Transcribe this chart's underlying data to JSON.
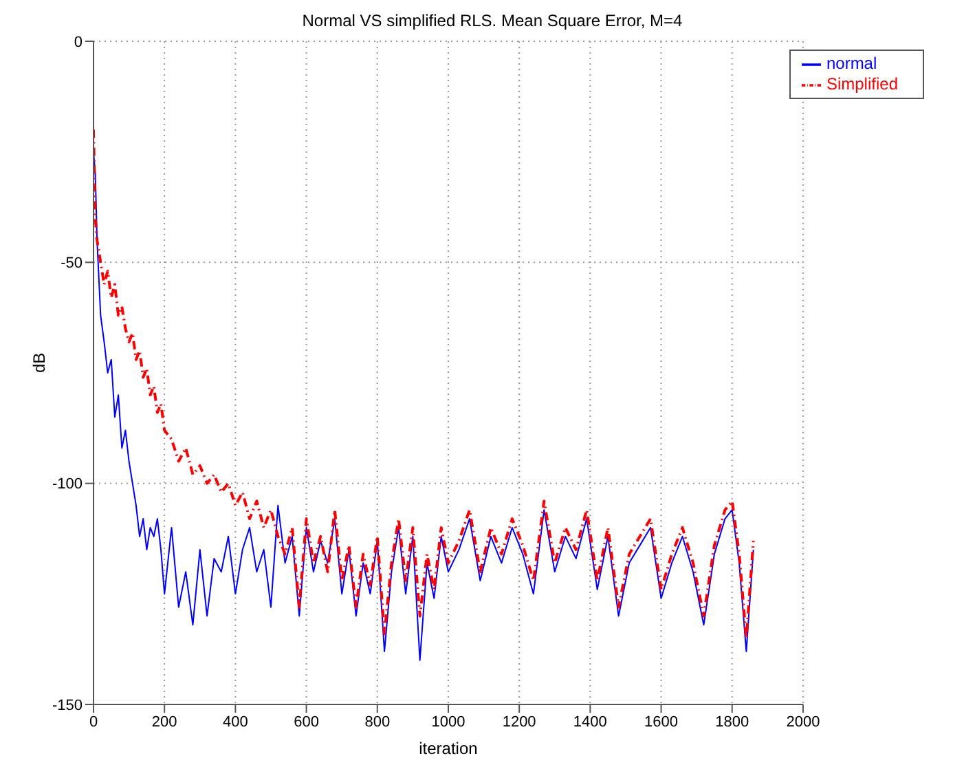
{
  "chart_data": {
    "type": "line",
    "title": "Normal VS simplified RLS. Mean Square Error, M=4",
    "xlabel": "iteration",
    "ylabel": "dB",
    "x": [
      0,
      5,
      10,
      20,
      30,
      40,
      50,
      60,
      70,
      80,
      90,
      100,
      110,
      120,
      130,
      140,
      150,
      160,
      170,
      180,
      190,
      200,
      220,
      240,
      260,
      280,
      300,
      320,
      340,
      360,
      380,
      400,
      420,
      440,
      460,
      480,
      500,
      520,
      540,
      560,
      580,
      600,
      620,
      640,
      660,
      680,
      700,
      720,
      740,
      760,
      780,
      800,
      820,
      840,
      860,
      880,
      900,
      920,
      940,
      960,
      980,
      1000,
      1030,
      1060,
      1090,
      1120,
      1150,
      1180,
      1210,
      1240,
      1270,
      1300,
      1330,
      1360,
      1390,
      1420,
      1450,
      1480,
      1510,
      1540,
      1570,
      1600,
      1630,
      1660,
      1690,
      1720,
      1750,
      1780,
      1800,
      1820,
      1840,
      1860
    ],
    "series": [
      {
        "name": "normal",
        "color": "#0000ff",
        "line_style": "solid",
        "values": [
          -25,
          -30,
          -45,
          -62,
          -68,
          -75,
          -72,
          -85,
          -80,
          -92,
          -88,
          -95,
          -100,
          -105,
          -112,
          -108,
          -115,
          -110,
          -112,
          -108,
          -115,
          -125,
          -110,
          -128,
          -120,
          -132,
          -115,
          -130,
          -117,
          -120,
          -112,
          -125,
          -115,
          -110,
          -120,
          -115,
          -128,
          -105,
          -118,
          -112,
          -130,
          -110,
          -120,
          -113,
          -118,
          -108,
          -125,
          -115,
          -130,
          -118,
          -125,
          -113,
          -138,
          -120,
          -110,
          -125,
          -112,
          -140,
          -118,
          -126,
          -112,
          -120,
          -115,
          -108,
          -122,
          -112,
          -118,
          -110,
          -116,
          -125,
          -106,
          -120,
          -112,
          -117,
          -108,
          -124,
          -112,
          -130,
          -118,
          -114,
          -110,
          -126,
          -118,
          -112,
          -120,
          -132,
          -116,
          -108,
          -106,
          -118,
          -138,
          -115
        ]
      },
      {
        "name": "Simplified",
        "color": "#ff0000",
        "line_style": "dashed",
        "values": [
          -20,
          -40,
          -45,
          -50,
          -55,
          -52,
          -58,
          -55,
          -62,
          -60,
          -65,
          -68,
          -66,
          -72,
          -70,
          -76,
          -74,
          -80,
          -78,
          -84,
          -82,
          -88,
          -90,
          -95,
          -92,
          -98,
          -96,
          -100,
          -98,
          -102,
          -100,
          -105,
          -102,
          -108,
          -104,
          -110,
          -106,
          -112,
          -116,
          -110,
          -128,
          -108,
          -118,
          -112,
          -120,
          -106,
          -122,
          -114,
          -128,
          -116,
          -123,
          -112,
          -134,
          -118,
          -108,
          -122,
          -110,
          -130,
          -116,
          -124,
          -110,
          -118,
          -113,
          -106,
          -120,
          -110,
          -116,
          -108,
          -114,
          -122,
          -104,
          -118,
          -110,
          -115,
          -106,
          -122,
          -110,
          -128,
          -116,
          -112,
          -108,
          -124,
          -116,
          -110,
          -118,
          -130,
          -114,
          -106,
          -104,
          -116,
          -135,
          -113
        ]
      }
    ],
    "xlim": [
      0,
      2000
    ],
    "xticks": [
      0,
      200,
      400,
      600,
      800,
      1000,
      1200,
      1400,
      1600,
      1800,
      2000
    ],
    "ylim": [
      -150,
      0
    ],
    "yticks": [
      -150,
      -100,
      -50,
      0
    ],
    "grid": true,
    "legend": "top right"
  }
}
